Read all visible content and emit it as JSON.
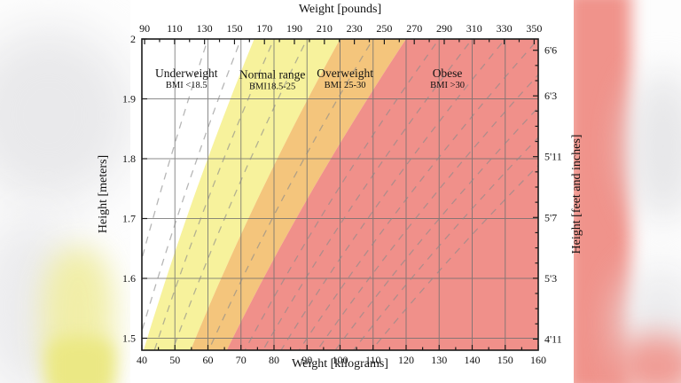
{
  "chart_data": {
    "type": "area",
    "description": "BMI chart: body-mass-index category regions over weight (x) and height (y)",
    "x_bottom": {
      "label": "Weight [kilograms]",
      "min": 40,
      "max": 160,
      "major_ticks": [
        40,
        50,
        60,
        70,
        80,
        90,
        100,
        110,
        120,
        130,
        140,
        150,
        160
      ],
      "minor_ticks": [
        45,
        55,
        65,
        75,
        85,
        95,
        105,
        115,
        125,
        135,
        145,
        155
      ]
    },
    "x_top": {
      "label": "Weight [pounds]",
      "kg_per_lb": 0.453592,
      "major_ticks": [
        90,
        110,
        130,
        150,
        170,
        190,
        210,
        230,
        250,
        270,
        290,
        310,
        330,
        350
      ],
      "minor_ticks": [
        100,
        120,
        140,
        160,
        180,
        200,
        220,
        240,
        260,
        280,
        300,
        320,
        340
      ]
    },
    "y_left": {
      "label": "Height [meters]",
      "min": 1.48,
      "max": 2.0,
      "major_ticks": [
        {
          "value": 2.0,
          "text": "2"
        },
        {
          "value": 1.9,
          "text": "1.9"
        },
        {
          "value": 1.8,
          "text": "1.8"
        },
        {
          "value": 1.7,
          "text": "1.7"
        },
        {
          "value": 1.6,
          "text": "1.6"
        },
        {
          "value": 1.5,
          "text": "1.5"
        }
      ]
    },
    "y_right": {
      "label": "Height [feet and inches]",
      "meters_per_inch": 0.0254,
      "major_ticks": [
        {
          "text": "6'6",
          "inches": 78
        },
        {
          "text": "6'3",
          "inches": 75
        },
        {
          "text": "5'11",
          "inches": 71
        },
        {
          "text": "5'7",
          "inches": 67
        },
        {
          "text": "5'3",
          "inches": 63
        },
        {
          "text": "4'11",
          "inches": 59
        }
      ],
      "minor_tick_every_inch": true
    },
    "regions": [
      {
        "name": "Underweight",
        "sublabel": "BMI <18.5",
        "bmi_min": null,
        "bmi_max": 18.5,
        "color": "#ffffff",
        "label_kg": 53.5,
        "label_m": 1.936
      },
      {
        "name": "Normal range",
        "sublabel": "BMI18.5-25",
        "bmi_min": 18.5,
        "bmi_max": 25,
        "color": "#f7f29c",
        "label_kg": 79.5,
        "label_m": 1.934
      },
      {
        "name": "Overweight",
        "sublabel": "BMI 25-30",
        "bmi_min": 25,
        "bmi_max": 30,
        "color": "#f4c57c",
        "label_kg": 101.5,
        "label_m": 1.936
      },
      {
        "name": "Obese",
        "sublabel": "BMI >30",
        "bmi_min": 30,
        "bmi_max": null,
        "color": "#f0908a",
        "label_kg": 132.5,
        "label_m": 1.936
      }
    ],
    "dashed_bmi_lines": [
      15,
      17.5,
      20,
      22.5,
      27.5,
      32.5,
      35,
      37.5,
      40,
      42.5,
      45,
      47.5,
      50
    ],
    "grid": {
      "vertical_kg": [
        50,
        60,
        70,
        80,
        90,
        100,
        110,
        120,
        130,
        140,
        150
      ],
      "horizontal_m": [
        1.5,
        1.6,
        1.7,
        1.8,
        1.9
      ],
      "color": "#6f6f6f"
    },
    "frame_color": "#1a1a1a",
    "dashed_line_color": "#8a8a8a"
  }
}
